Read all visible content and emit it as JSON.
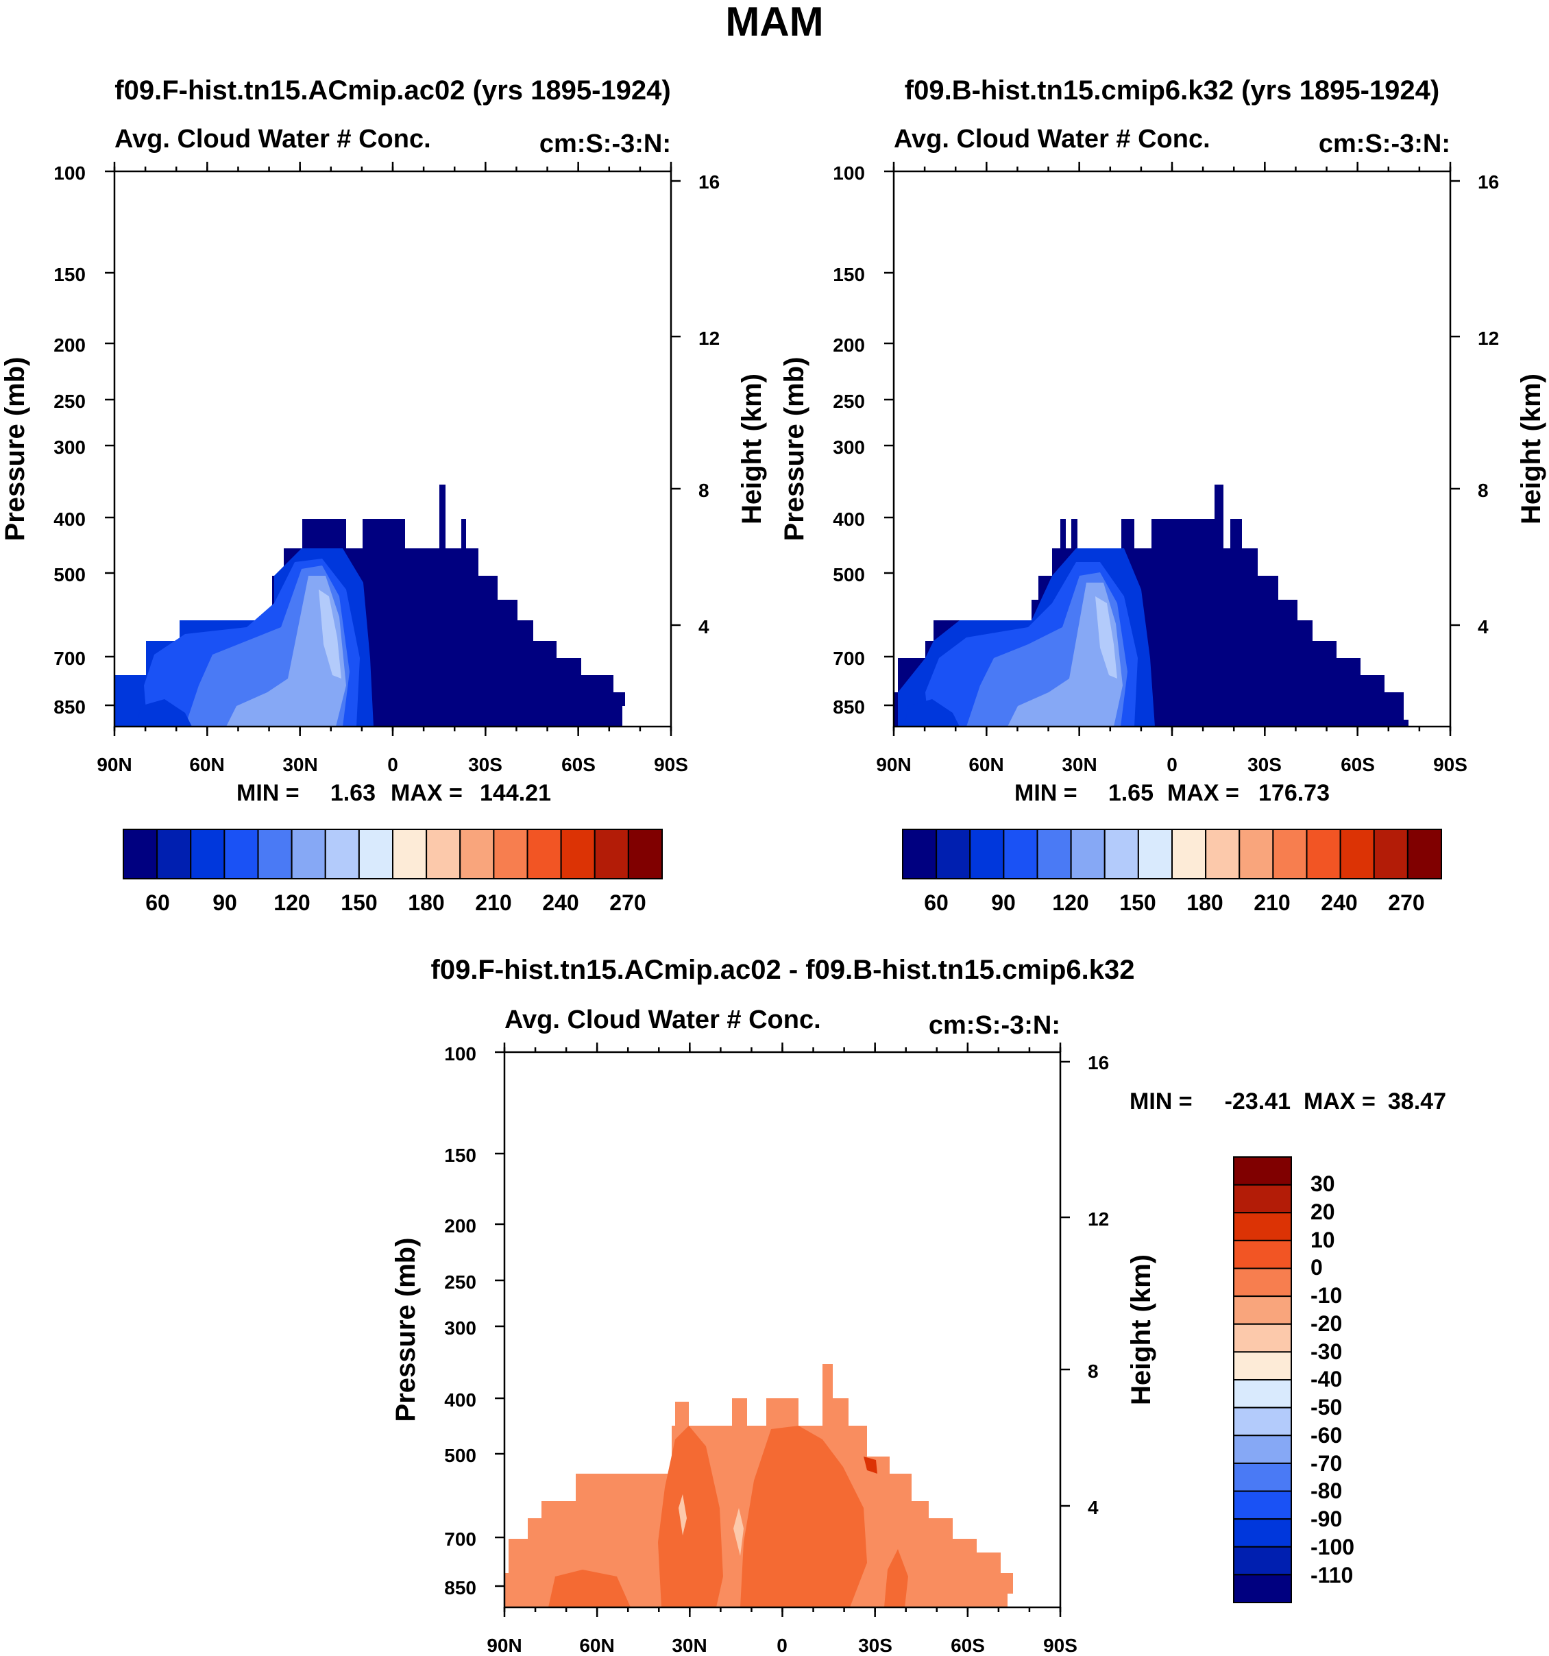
{
  "figure": {
    "title": "MAM",
    "palette": {
      "blue_to_red": [
        "#000080",
        "#001fb0",
        "#0037dc",
        "#1a52f5",
        "#4a7af5",
        "#86a8f5",
        "#b3cbfb",
        "#d9eafd",
        "#fdebd7",
        "#fcc9ab",
        "#f9a57c",
        "#f77e4f",
        "#f25524",
        "#dc3305",
        "#b31c07",
        "#800000"
      ],
      "background": "#ffffff"
    }
  },
  "chart_data": [
    {
      "type": "contour",
      "title": "f09.F-hist.tn15.ACmip.ac02 (yrs 1895-1924)",
      "subtitle_left": "Avg. Cloud Water # Conc.",
      "subtitle_right": "cm:S:-3:N:",
      "xlabel": "",
      "ylabel": "Pressure (mb)",
      "y2label": "Height (km)",
      "x_ticks": [
        "90N",
        "60N",
        "30N",
        "0",
        "30S",
        "60S",
        "90S"
      ],
      "y_ticks": [
        "100",
        "150",
        "200",
        "250",
        "300",
        "400",
        "500",
        "700",
        "850"
      ],
      "y2_ticks": [
        "16",
        "12",
        "8",
        "4"
      ],
      "min_label": "MIN =",
      "min_value": "1.63",
      "max_label": "MAX =",
      "max_value": "144.21",
      "colorbar_labels": [
        "60",
        "90",
        "120",
        "150",
        "180",
        "210",
        "240",
        "270"
      ],
      "ylim": [
        1000,
        100
      ],
      "xlim": [
        90,
        -90
      ],
      "data_note": "Dark blue low concentrations over 20S-75S below 400 mb; lighter blue maximum near 15N-25N around 600-700 mb."
    },
    {
      "type": "contour",
      "title": "f09.B-hist.tn15.cmip6.k32 (yrs 1895-1924)",
      "subtitle_left": "Avg. Cloud Water # Conc.",
      "subtitle_right": "cm:S:-3:N:",
      "ylabel": "Pressure (mb)",
      "y2label": "Height (km)",
      "x_ticks": [
        "90N",
        "60N",
        "30N",
        "0",
        "30S",
        "60S",
        "90S"
      ],
      "y_ticks": [
        "100",
        "150",
        "200",
        "250",
        "300",
        "400",
        "500",
        "700",
        "850"
      ],
      "y2_ticks": [
        "16",
        "12",
        "8",
        "4"
      ],
      "min_label": "MIN =",
      "min_value": "1.65",
      "max_label": "MAX =",
      "max_value": "176.73",
      "colorbar_labels": [
        "60",
        "90",
        "120",
        "150",
        "180",
        "210",
        "240",
        "270"
      ],
      "ylim": [
        1000,
        100
      ],
      "xlim": [
        90,
        -90
      ]
    },
    {
      "type": "contour",
      "title": "f09.F-hist.tn15.ACmip.ac02 - f09.B-hist.tn15.cmip6.k32",
      "subtitle_left": "Avg. Cloud Water # Conc.",
      "subtitle_right": "cm:S:-3:N:",
      "ylabel": "Pressure (mb)",
      "y2label": "Height (km)",
      "x_ticks": [
        "90N",
        "60N",
        "30N",
        "0",
        "30S",
        "60S",
        "90S"
      ],
      "y_ticks": [
        "100",
        "150",
        "200",
        "250",
        "300",
        "400",
        "500",
        "700",
        "850"
      ],
      "y2_ticks": [
        "16",
        "12",
        "8",
        "4"
      ],
      "min_label": "MIN =",
      "min_value": "-23.41",
      "max_label": "MAX =",
      "max_value": "38.47",
      "colorbar_labels": [
        "30",
        "20",
        "10",
        "0",
        "-10",
        "-20",
        "-30",
        "-40",
        "-50",
        "-60",
        "-70",
        "-80",
        "-90",
        "-100",
        "-110"
      ],
      "ylim": [
        1000,
        100
      ],
      "xlim": [
        90,
        -90
      ],
      "data_note": "Differences mostly 0 to -20 (orange) throughout cloud region."
    }
  ]
}
